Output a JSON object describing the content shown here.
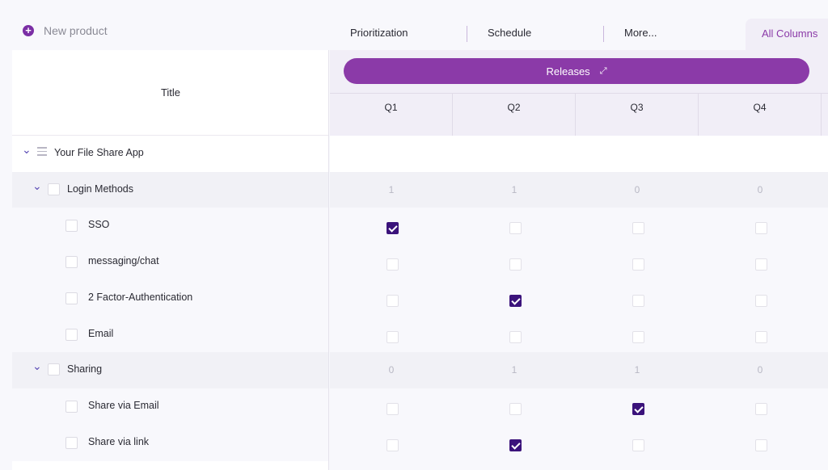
{
  "toolbar": {
    "new_product_label": "New product",
    "tabs": [
      "Prioritization",
      "Schedule",
      "More...",
      "All Columns"
    ]
  },
  "table": {
    "title_header": "Title",
    "group_header": "Releases",
    "columns": [
      "Q1",
      "Q2",
      "Q3",
      "Q4"
    ],
    "rows": [
      {
        "type": "root",
        "label": "Your File Share App"
      },
      {
        "type": "group",
        "label": "Login Methods",
        "counts": [
          "1",
          "1",
          "0",
          "0"
        ]
      },
      {
        "type": "item",
        "label": "SSO",
        "checks": [
          true,
          false,
          false,
          false
        ]
      },
      {
        "type": "item",
        "label": "messaging/chat",
        "checks": [
          false,
          false,
          false,
          false
        ]
      },
      {
        "type": "item",
        "label": "2 Factor-Authentication",
        "checks": [
          false,
          true,
          false,
          false
        ]
      },
      {
        "type": "item",
        "label": "Email",
        "checks": [
          false,
          false,
          false,
          false
        ]
      },
      {
        "type": "group",
        "label": "Sharing",
        "counts": [
          "0",
          "1",
          "1",
          "0"
        ]
      },
      {
        "type": "item",
        "label": "Share via Email",
        "checks": [
          false,
          false,
          true,
          false
        ]
      },
      {
        "type": "item",
        "label": "Share via link",
        "checks": [
          false,
          true,
          false,
          false
        ]
      }
    ]
  },
  "colors": {
    "accent": "#8b3aa8",
    "checked": "#3b137b"
  }
}
